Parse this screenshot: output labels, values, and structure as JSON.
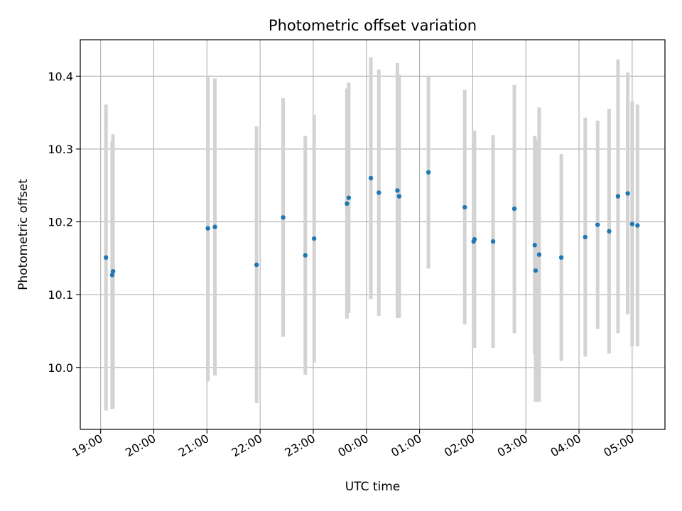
{
  "chart_data": {
    "type": "scatter",
    "title": "Photometric offset variation",
    "xlabel": "UTC time",
    "ylabel": "Photometric offset",
    "x_ticks": [
      "19:00",
      "20:00",
      "21:00",
      "22:00",
      "23:00",
      "00:00",
      "01:00",
      "02:00",
      "03:00",
      "04:00",
      "05:00"
    ],
    "y_ticks": [
      "10.0",
      "10.1",
      "10.2",
      "10.3",
      "10.4"
    ],
    "y_tick_values": [
      10.0,
      10.1,
      10.2,
      10.3,
      10.4
    ],
    "xlim": [
      "18:37",
      "05:37"
    ],
    "ylim": [
      9.915,
      10.45
    ],
    "grid": true,
    "colors": {
      "points": "#1f77b4",
      "errorbars": "#d3d3d3",
      "grid": "#b0b0b0"
    },
    "points": [
      {
        "t": "19:06",
        "y": 10.151,
        "lo": 9.941,
        "hi": 10.361
      },
      {
        "t": "19:13",
        "y": 10.127,
        "lo": 9.943,
        "hi": 10.311
      },
      {
        "t": "19:14",
        "y": 10.132,
        "lo": 9.944,
        "hi": 10.32
      },
      {
        "t": "21:01",
        "y": 10.191,
        "lo": 9.981,
        "hi": 10.401
      },
      {
        "t": "21:09",
        "y": 10.193,
        "lo": 9.989,
        "hi": 10.397
      },
      {
        "t": "21:56",
        "y": 10.141,
        "lo": 9.951,
        "hi": 10.331
      },
      {
        "t": "22:26",
        "y": 10.206,
        "lo": 10.042,
        "hi": 10.37
      },
      {
        "t": "22:51",
        "y": 10.154,
        "lo": 9.99,
        "hi": 10.318
      },
      {
        "t": "23:01",
        "y": 10.177,
        "lo": 10.007,
        "hi": 10.347
      },
      {
        "t": "23:38",
        "y": 10.225,
        "lo": 10.067,
        "hi": 10.383
      },
      {
        "t": "23:40",
        "y": 10.233,
        "lo": 10.075,
        "hi": 10.391
      },
      {
        "t": "00:05",
        "y": 10.26,
        "lo": 10.094,
        "hi": 10.426
      },
      {
        "t": "00:14",
        "y": 10.24,
        "lo": 10.071,
        "hi": 10.409
      },
      {
        "t": "00:35",
        "y": 10.243,
        "lo": 10.068,
        "hi": 10.418
      },
      {
        "t": "00:37",
        "y": 10.235,
        "lo": 10.068,
        "hi": 10.402
      },
      {
        "t": "01:10",
        "y": 10.268,
        "lo": 10.136,
        "hi": 10.4
      },
      {
        "t": "01:51",
        "y": 10.22,
        "lo": 10.059,
        "hi": 10.381
      },
      {
        "t": "02:01",
        "y": 10.173,
        "lo": 10.027,
        "hi": 10.319
      },
      {
        "t": "02:02",
        "y": 10.176,
        "lo": 10.027,
        "hi": 10.325
      },
      {
        "t": "02:23",
        "y": 10.173,
        "lo": 10.027,
        "hi": 10.319
      },
      {
        "t": "02:47",
        "y": 10.218,
        "lo": 10.047,
        "hi": 10.388
      },
      {
        "t": "03:10",
        "y": 10.168,
        "lo": 10.018,
        "hi": 10.318
      },
      {
        "t": "03:11",
        "y": 10.133,
        "lo": 9.953,
        "hi": 10.313
      },
      {
        "t": "03:15",
        "y": 10.155,
        "lo": 9.953,
        "hi": 10.357
      },
      {
        "t": "03:40",
        "y": 10.151,
        "lo": 10.009,
        "hi": 10.293
      },
      {
        "t": "04:07",
        "y": 10.179,
        "lo": 10.015,
        "hi": 10.343
      },
      {
        "t": "04:21",
        "y": 10.196,
        "lo": 10.053,
        "hi": 10.339
      },
      {
        "t": "04:34",
        "y": 10.187,
        "lo": 10.019,
        "hi": 10.355
      },
      {
        "t": "04:44",
        "y": 10.235,
        "lo": 10.047,
        "hi": 10.423
      },
      {
        "t": "04:55",
        "y": 10.239,
        "lo": 10.073,
        "hi": 10.405
      },
      {
        "t": "05:00",
        "y": 10.197,
        "lo": 10.029,
        "hi": 10.365
      },
      {
        "t": "05:06",
        "y": 10.195,
        "lo": 10.029,
        "hi": 10.361
      }
    ]
  }
}
